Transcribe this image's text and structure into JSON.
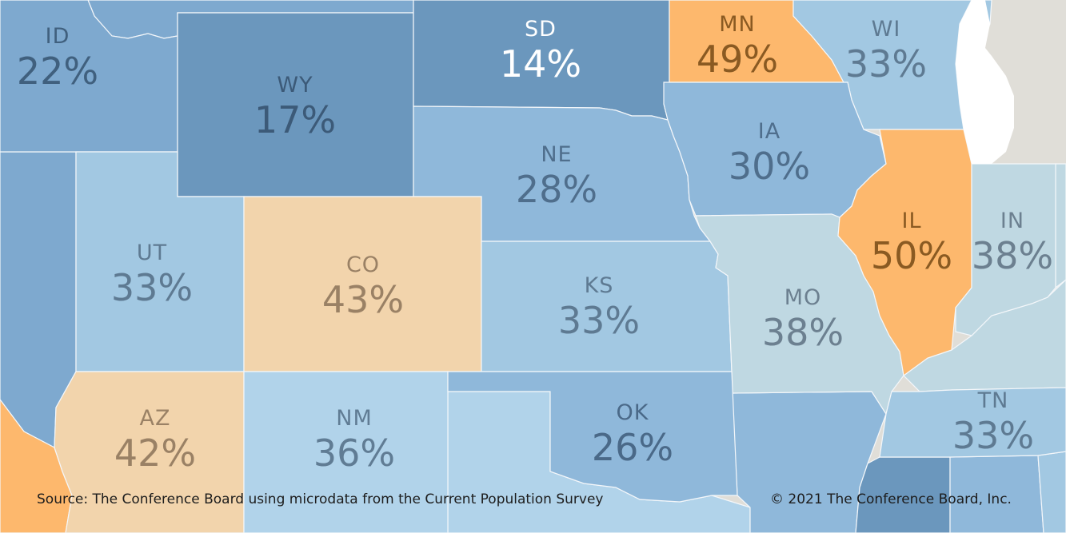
{
  "palette": {
    "blue_dark": "#6b97bd",
    "blue_mid": "#7ea9cf",
    "blue_light": "#8fb8da",
    "blue_pale": "#a2c8e2",
    "blue_paler": "#b1d3ea",
    "gray_blue": "#bfd8e2",
    "orange": "#fdb86d",
    "peach": "#f2d4ac",
    "lake": "#ffffff",
    "land_gray": "#e0ded8"
  },
  "states": [
    {
      "abbr": "ID",
      "value": "22%",
      "color_key": "blue_mid",
      "text_color": "#40607e"
    },
    {
      "abbr": "WY",
      "value": "17%",
      "color_key": "blue_dark",
      "text_color": "#3c5a78"
    },
    {
      "abbr": "SD",
      "value": "14%",
      "color_key": "blue_dark",
      "text_color": "#ffffff"
    },
    {
      "abbr": "MN",
      "value": "49%",
      "color_key": "orange",
      "text_color": "#8a5a22"
    },
    {
      "abbr": "WI",
      "value": "33%",
      "color_key": "blue_pale",
      "text_color": "#5e7a92"
    },
    {
      "abbr": "NE",
      "value": "28%",
      "color_key": "blue_light",
      "text_color": "#4f6e8c"
    },
    {
      "abbr": "IA",
      "value": "30%",
      "color_key": "blue_light",
      "text_color": "#4f6e8c"
    },
    {
      "abbr": "UT",
      "value": "33%",
      "color_key": "blue_pale",
      "text_color": "#5e7a92"
    },
    {
      "abbr": "CO",
      "value": "43%",
      "color_key": "peach",
      "text_color": "#9a8165"
    },
    {
      "abbr": "KS",
      "value": "33%",
      "color_key": "blue_pale",
      "text_color": "#5e7a92"
    },
    {
      "abbr": "MO",
      "value": "38%",
      "color_key": "gray_blue",
      "text_color": "#6c8090"
    },
    {
      "abbr": "IL",
      "value": "50%",
      "color_key": "orange",
      "text_color": "#8a5a22"
    },
    {
      "abbr": "IN",
      "value": "38%",
      "color_key": "gray_blue",
      "text_color": "#6c8090"
    },
    {
      "abbr": "AZ",
      "value": "42%",
      "color_key": "peach",
      "text_color": "#9a8165"
    },
    {
      "abbr": "NM",
      "value": "36%",
      "color_key": "blue_paler",
      "text_color": "#607c94"
    },
    {
      "abbr": "OK",
      "value": "26%",
      "color_key": "blue_light",
      "text_color": "#4a6988"
    },
    {
      "abbr": "TN",
      "value": "33%",
      "color_key": "blue_pale",
      "text_color": "#5e7a92"
    }
  ],
  "footer": {
    "source": "Source: The Conference Board using microdata from the Current Population Survey",
    "copyright": "© 2021 The Conference Board, Inc."
  }
}
